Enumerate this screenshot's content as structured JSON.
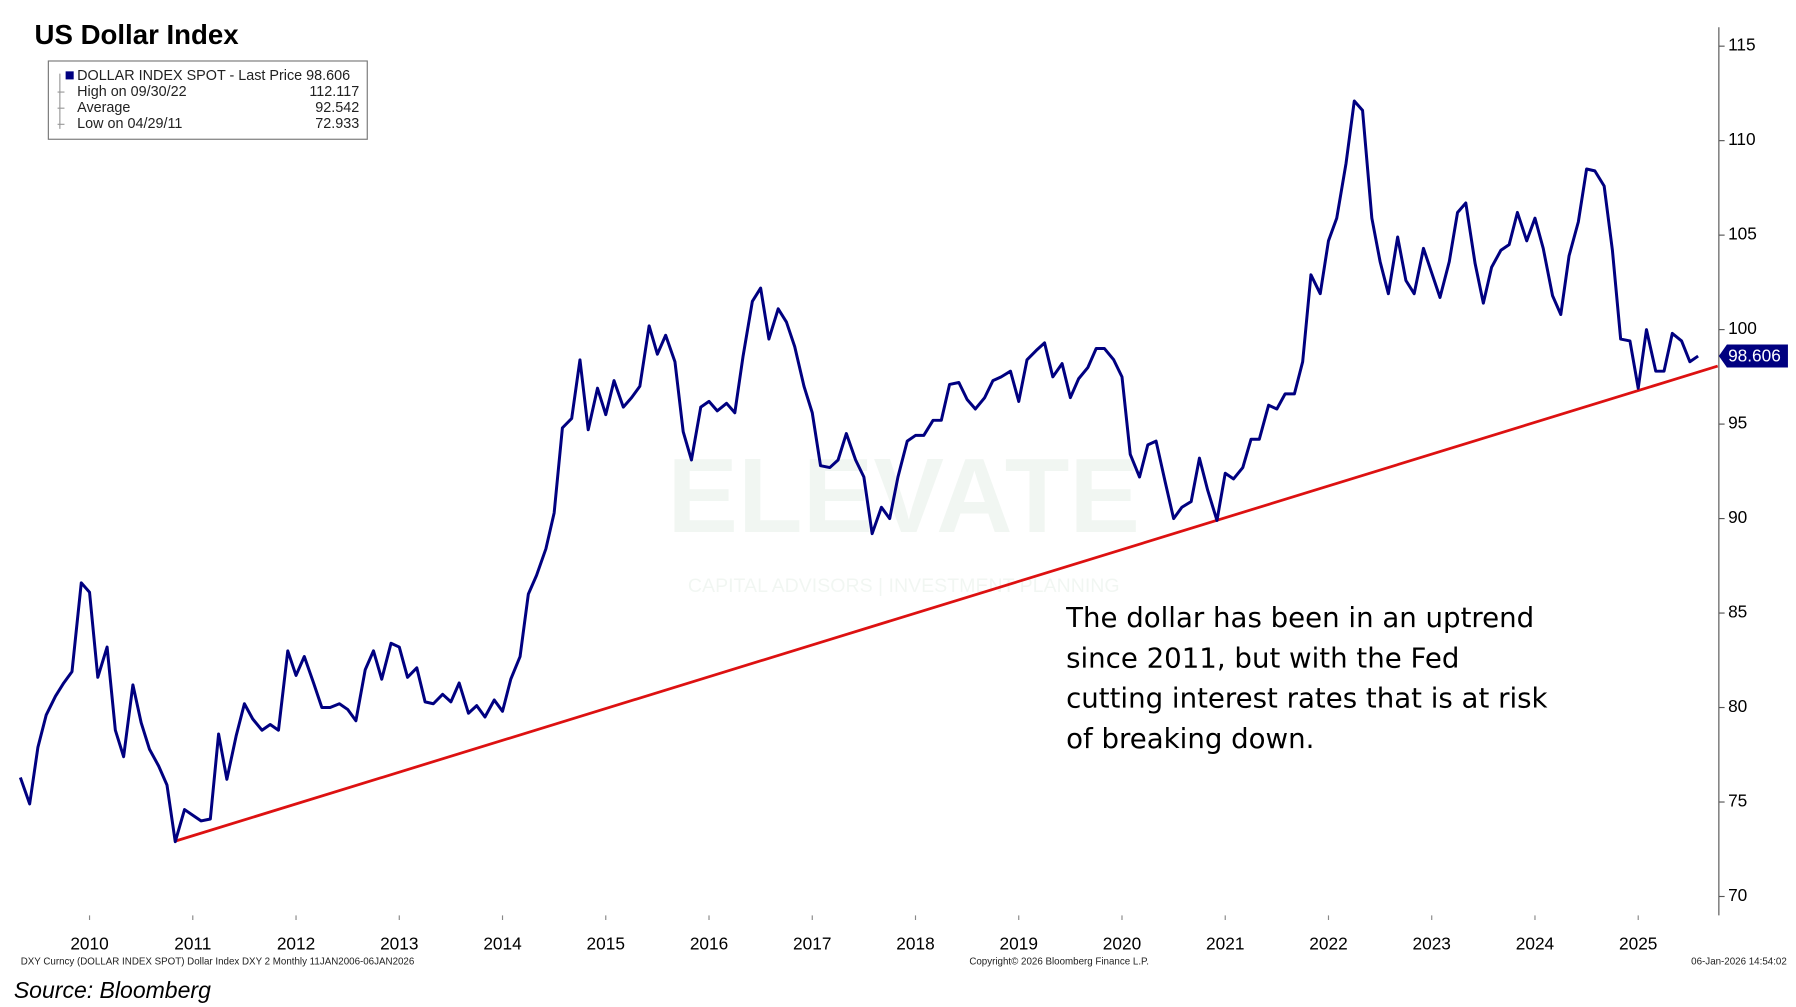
{
  "title": "US Dollar Index",
  "source": "Source: Bloomberg",
  "footer": {
    "left": "DXY Curncy (DOLLAR INDEX SPOT) Dollar Index DXY 2 Monthly 11JAN2006-06JAN2026",
    "center": "Copyright© 2026 Bloomberg Finance L.P.",
    "right": "06-Jan-2026 14:54:02"
  },
  "watermark": {
    "name": "ELEVATE",
    "tagline": "CAPITAL ADVISORS | INVESTMENT PLANNING"
  },
  "legend_box": {
    "series_label": "DOLLAR INDEX SPOT - Last Price 98.606",
    "rows": [
      {
        "label": "High on 09/30/22",
        "value": 112.117
      },
      {
        "label": "Average",
        "value": 92.542
      },
      {
        "label": "Low on 04/29/11",
        "value": 72.933
      }
    ]
  },
  "chart_data": {
    "type": "line",
    "annotation": [
      "The dollar has been in an uptrend",
      "since 2011, but with the Fed",
      "cutting interest rates that is at risk",
      "of breaking down."
    ],
    "last_price": 98.606,
    "xlim": [
      2009.8,
      2026.27
    ],
    "ylim": [
      69,
      116
    ],
    "yticks": [
      70,
      75,
      80,
      85,
      90,
      95,
      100,
      105,
      110,
      115
    ],
    "xticks": [
      {
        "value": 2010.5,
        "label": "2010"
      },
      {
        "value": 2011.5,
        "label": "2011"
      },
      {
        "value": 2012.5,
        "label": "2012"
      },
      {
        "value": 2013.5,
        "label": "2013"
      },
      {
        "value": 2014.5,
        "label": "2014"
      },
      {
        "value": 2015.5,
        "label": "2015"
      },
      {
        "value": 2016.5,
        "label": "2016"
      },
      {
        "value": 2017.5,
        "label": "2017"
      },
      {
        "value": 2018.5,
        "label": "2018"
      },
      {
        "value": 2019.5,
        "label": "2019"
      },
      {
        "value": 2020.5,
        "label": "2020"
      },
      {
        "value": 2021.5,
        "label": "2021"
      },
      {
        "value": 2022.5,
        "label": "2022"
      },
      {
        "value": 2023.5,
        "label": "2023"
      },
      {
        "value": 2024.5,
        "label": "2024"
      },
      {
        "value": 2025.5,
        "label": "2025"
      }
    ],
    "x": [
      2009.83,
      2009.92,
      2010.0,
      2010.08,
      2010.17,
      2010.25,
      2010.33,
      2010.42,
      2010.5,
      2010.58,
      2010.67,
      2010.75,
      2010.83,
      2010.92,
      2011.0,
      2011.08,
      2011.17,
      2011.25,
      2011.33,
      2011.42,
      2011.5,
      2011.58,
      2011.67,
      2011.75,
      2011.83,
      2011.92,
      2012.0,
      2012.08,
      2012.17,
      2012.25,
      2012.33,
      2012.42,
      2012.5,
      2012.58,
      2012.67,
      2012.75,
      2012.83,
      2012.92,
      2013.0,
      2013.08,
      2013.17,
      2013.25,
      2013.33,
      2013.42,
      2013.5,
      2013.58,
      2013.67,
      2013.75,
      2013.83,
      2013.92,
      2014.0,
      2014.08,
      2014.17,
      2014.25,
      2014.33,
      2014.42,
      2014.5,
      2014.58,
      2014.67,
      2014.75,
      2014.83,
      2014.92,
      2015.0,
      2015.08,
      2015.17,
      2015.25,
      2015.33,
      2015.42,
      2015.5,
      2015.58,
      2015.67,
      2015.75,
      2015.83,
      2015.92,
      2016.0,
      2016.08,
      2016.17,
      2016.25,
      2016.33,
      2016.42,
      2016.5,
      2016.58,
      2016.67,
      2016.75,
      2016.83,
      2016.92,
      2017.0,
      2017.08,
      2017.17,
      2017.25,
      2017.33,
      2017.42,
      2017.5,
      2017.58,
      2017.67,
      2017.75,
      2017.83,
      2017.92,
      2018.0,
      2018.08,
      2018.17,
      2018.25,
      2018.33,
      2018.42,
      2018.5,
      2018.58,
      2018.67,
      2018.75,
      2018.83,
      2018.92,
      2019.0,
      2019.08,
      2019.17,
      2019.25,
      2019.33,
      2019.42,
      2019.5,
      2019.58,
      2019.67,
      2019.75,
      2019.83,
      2019.92,
      2020.0,
      2020.08,
      2020.17,
      2020.25,
      2020.33,
      2020.42,
      2020.5,
      2020.58,
      2020.67,
      2020.75,
      2020.83,
      2020.92,
      2021.0,
      2021.08,
      2021.17,
      2021.25,
      2021.33,
      2021.42,
      2021.5,
      2021.58,
      2021.67,
      2021.75,
      2021.83,
      2021.92,
      2022.0,
      2022.08,
      2022.17,
      2022.25,
      2022.33,
      2022.42,
      2022.5,
      2022.58,
      2022.67,
      2022.75,
      2022.83,
      2022.92,
      2023.0,
      2023.08,
      2023.17,
      2023.25,
      2023.33,
      2023.42,
      2023.5,
      2023.58,
      2023.67,
      2023.75,
      2023.83,
      2023.92,
      2024.0,
      2024.08,
      2024.17,
      2024.25,
      2024.33,
      2024.42,
      2024.5,
      2024.58,
      2024.67,
      2024.75,
      2024.83,
      2024.92,
      2025.0,
      2025.08,
      2025.17,
      2025.25,
      2025.33,
      2025.42,
      2025.5,
      2025.58,
      2025.67,
      2025.75,
      2025.83,
      2025.92,
      2026.0,
      2026.08
    ],
    "series": [
      {
        "name": "DOLLAR INDEX SPOT",
        "color": "#000080",
        "values": [
          76.3,
          74.9,
          77.9,
          79.6,
          80.6,
          81.3,
          81.9,
          86.6,
          86.1,
          81.6,
          83.2,
          78.8,
          77.4,
          81.2,
          79.2,
          77.8,
          76.9,
          75.9,
          72.9,
          74.6,
          74.3,
          74.0,
          74.1,
          78.6,
          76.2,
          78.5,
          80.2,
          79.4,
          78.8,
          79.1,
          78.8,
          83.0,
          81.7,
          82.7,
          81.3,
          80.0,
          80.0,
          80.2,
          79.9,
          79.3,
          82.0,
          83.0,
          81.5,
          83.4,
          83.2,
          81.6,
          82.1,
          80.3,
          80.2,
          80.7,
          80.3,
          81.3,
          79.7,
          80.1,
          79.5,
          80.4,
          79.8,
          81.5,
          82.7,
          86.0,
          87.0,
          88.4,
          90.3,
          94.8,
          95.3,
          98.4,
          94.7,
          96.9,
          95.5,
          97.3,
          95.9,
          96.4,
          97.0,
          100.2,
          98.7,
          99.7,
          98.3,
          94.6,
          93.1,
          95.9,
          96.2,
          95.7,
          96.1,
          95.6,
          98.6,
          101.5,
          102.2,
          99.5,
          101.1,
          100.4,
          99.1,
          97.0,
          95.6,
          92.8,
          92.7,
          93.1,
          94.5,
          93.1,
          92.2,
          89.2,
          90.6,
          90.0,
          92.2,
          94.1,
          94.4,
          94.4,
          95.2,
          95.2,
          97.1,
          97.2,
          96.3,
          95.8,
          96.4,
          97.3,
          97.5,
          97.8,
          96.2,
          98.4,
          98.9,
          99.3,
          97.5,
          98.2,
          96.4,
          97.4,
          98.0,
          99.0,
          99.0,
          98.4,
          97.5,
          93.4,
          92.2,
          93.9,
          94.1,
          91.9,
          90.0,
          90.6,
          90.9,
          93.2,
          91.5,
          89.9,
          92.4,
          92.1,
          92.7,
          94.2,
          94.2,
          96.0,
          95.8,
          96.6,
          96.6,
          98.3,
          102.9,
          101.9,
          104.7,
          105.9,
          108.8,
          112.1,
          111.6,
          105.9,
          103.6,
          101.9,
          104.9,
          102.6,
          101.9,
          104.3,
          103.0,
          101.7,
          103.6,
          106.2,
          106.7,
          103.5,
          101.4,
          103.3,
          104.2,
          104.5,
          106.2,
          104.7,
          105.9,
          104.3,
          101.8,
          100.8,
          103.9,
          105.7,
          108.5,
          108.4,
          107.6,
          104.2,
          99.5,
          99.4,
          96.9,
          100.0,
          97.8,
          97.8,
          99.8,
          99.4,
          98.3,
          98.6
        ]
      }
    ],
    "trendline": {
      "color": "#dd1111",
      "x": [
        2011.33,
        2026.27
      ],
      "values": [
        72.93,
        98.07
      ]
    }
  }
}
